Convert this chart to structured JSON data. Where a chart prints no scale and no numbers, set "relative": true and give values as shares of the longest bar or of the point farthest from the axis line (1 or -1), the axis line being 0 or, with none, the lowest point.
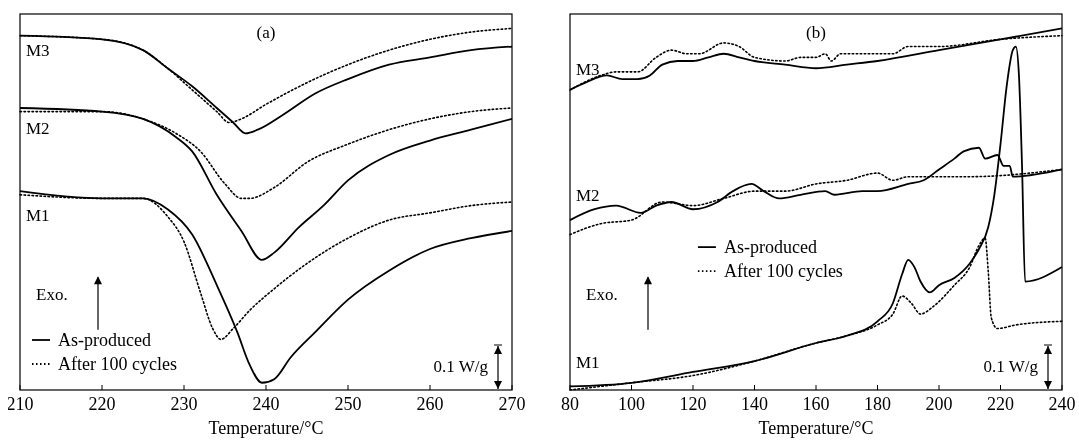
{
  "chart_data": [
    {
      "type": "line",
      "title": "(a)",
      "xlabel": "Temperature/°C",
      "relative": true,
      "xlim": [
        210,
        270
      ],
      "xticks": [
        210,
        220,
        230,
        240,
        250,
        260,
        270
      ],
      "legend": "bottom left",
      "annotations": [
        "M3",
        "M2",
        "M1",
        "Exo.",
        "0.1 W/g"
      ],
      "series": [
        {
          "name": "As-produced",
          "color": "#000000",
          "line_style": "solid",
          "x": [
            210,
            220,
            225,
            228,
            231,
            234,
            236,
            237.5,
            239,
            242,
            246,
            250,
            255,
            260,
            265,
            270
          ],
          "values": [
            0.98,
            0.97,
            0.94,
            0.89,
            0.84,
            0.78,
            0.74,
            0.71,
            0.72,
            0.76,
            0.82,
            0.86,
            0.9,
            0.92,
            0.94,
            0.95
          ]
        },
        {
          "name": "After 100 cycles",
          "color": "#000000",
          "line_style": "dotted",
          "x": [
            210,
            220,
            225,
            228,
            231,
            234,
            235.5,
            237,
            240,
            245,
            250,
            255,
            260,
            265,
            270
          ],
          "values": [
            0.98,
            0.97,
            0.94,
            0.89,
            0.83,
            0.77,
            0.74,
            0.75,
            0.79,
            0.85,
            0.9,
            0.94,
            0.97,
            0.99,
            1
          ]
        },
        {
          "color": "#000000",
          "line_style": "solid",
          "x": [
            210,
            220,
            225,
            229,
            231,
            234,
            237,
            239.5,
            241,
            244,
            247,
            250,
            255,
            260,
            265,
            270
          ],
          "values": [
            0.78,
            0.77,
            0.75,
            0.7,
            0.66,
            0.54,
            0.44,
            0.36,
            0.38,
            0.45,
            0.51,
            0.58,
            0.65,
            0.69,
            0.72,
            0.75
          ]
        },
        {
          "color": "#000000",
          "line_style": "dotted",
          "x": [
            210,
            220,
            225,
            229,
            232,
            235,
            237,
            238,
            241,
            245,
            250,
            255,
            260,
            265,
            270
          ],
          "values": [
            0.77,
            0.77,
            0.75,
            0.71,
            0.66,
            0.57,
            0.53,
            0.53,
            0.56,
            0.63,
            0.68,
            0.72,
            0.75,
            0.77,
            0.78
          ]
        },
        {
          "color": "#000000",
          "line_style": "solid",
          "x": [
            210,
            220,
            225,
            228,
            231,
            234,
            236.5,
            238,
            239.5,
            241,
            243,
            246,
            250,
            255,
            260,
            265,
            270
          ],
          "values": [
            0.55,
            0.53,
            0.53,
            0.5,
            0.43,
            0.29,
            0.16,
            0.07,
            0.02,
            0.03,
            0.09,
            0.16,
            0.25,
            0.33,
            0.39,
            0.42,
            0.44
          ]
        },
        {
          "color": "#000000",
          "line_style": "dotted",
          "x": [
            210,
            220,
            225,
            228,
            230,
            232,
            233.5,
            234.5,
            236,
            238,
            241,
            245,
            250,
            255,
            260,
            265,
            270
          ],
          "values": [
            0.54,
            0.53,
            0.53,
            0.48,
            0.41,
            0.27,
            0.17,
            0.14,
            0.17,
            0.22,
            0.28,
            0.35,
            0.42,
            0.47,
            0.49,
            0.51,
            0.52
          ]
        }
      ]
    },
    {
      "type": "line",
      "title": "(b)",
      "xlabel": "Temperature/°C",
      "relative": true,
      "xlim": [
        80,
        240
      ],
      "xticks": [
        80,
        100,
        120,
        140,
        160,
        180,
        200,
        220,
        240
      ],
      "legend": "center",
      "annotations": [
        "M3",
        "M2",
        "M1",
        "Exo.",
        "0.1 W/g"
      ],
      "series": [
        {
          "name": "As-produced",
          "color": "#000000",
          "line_style": "solid",
          "x": [
            80,
            85,
            92,
            97,
            102,
            106,
            110,
            115,
            120,
            125,
            130,
            135,
            140,
            150,
            160,
            170,
            180,
            200,
            220,
            240
          ],
          "values": [
            0.83,
            0.85,
            0.87,
            0.86,
            0.86,
            0.87,
            0.9,
            0.91,
            0.91,
            0.92,
            0.93,
            0.92,
            0.91,
            0.9,
            0.89,
            0.9,
            0.91,
            0.94,
            0.97,
            1
          ]
        },
        {
          "name": "After 100 cycles",
          "color": "#000000",
          "line_style": "dotted",
          "x": [
            80,
            90,
            95,
            102,
            108,
            113,
            118,
            122,
            130,
            135,
            140,
            150,
            155,
            160,
            163,
            165,
            168,
            175,
            185,
            190,
            200,
            220,
            240
          ],
          "values": [
            0.83,
            0.87,
            0.88,
            0.88,
            0.92,
            0.94,
            0.93,
            0.93,
            0.96,
            0.95,
            0.92,
            0.91,
            0.92,
            0.92,
            0.93,
            0.91,
            0.93,
            0.93,
            0.93,
            0.95,
            0.95,
            0.97,
            0.98
          ]
        },
        {
          "color": "#000000",
          "line_style": "solid",
          "x": [
            80,
            88,
            95,
            103,
            108,
            113,
            120,
            128,
            133,
            139,
            143,
            148,
            155,
            163,
            166,
            175,
            180,
            190,
            195,
            200,
            205,
            208,
            213,
            215,
            219,
            221,
            223,
            224,
            240
          ],
          "values": [
            0.47,
            0.5,
            0.51,
            0.49,
            0.51,
            0.52,
            0.5,
            0.52,
            0.55,
            0.57,
            0.55,
            0.53,
            0.54,
            0.55,
            0.54,
            0.55,
            0.55,
            0.57,
            0.58,
            0.61,
            0.64,
            0.66,
            0.67,
            0.64,
            0.65,
            0.62,
            0.62,
            0.59,
            0.61
          ]
        },
        {
          "color": "#000000",
          "line_style": "dotted",
          "x": [
            80,
            90,
            100,
            110,
            120,
            130,
            140,
            150,
            160,
            170,
            180,
            185,
            190,
            200,
            205,
            210,
            240
          ],
          "values": [
            0.43,
            0.46,
            0.47,
            0.52,
            0.51,
            0.53,
            0.55,
            0.55,
            0.57,
            0.58,
            0.6,
            0.58,
            0.59,
            0.59,
            0.59,
            0.59,
            0.61
          ]
        },
        {
          "color": "#000000",
          "line_style": "solid",
          "x": [
            80,
            100,
            120,
            140,
            160,
            170,
            180,
            185,
            188,
            190,
            192,
            194,
            197,
            200,
            205,
            210,
            213,
            216,
            218,
            220,
            222,
            224,
            225,
            226,
            227,
            228,
            240
          ],
          "values": [
            0.01,
            0.02,
            0.05,
            0.08,
            0.13,
            0.15,
            0.19,
            0.24,
            0.32,
            0.36,
            0.34,
            0.3,
            0.27,
            0.29,
            0.31,
            0.35,
            0.39,
            0.45,
            0.54,
            0.68,
            0.84,
            0.94,
            0.95,
            0.87,
            0.62,
            0.3,
            0.34
          ]
        },
        {
          "color": "#000000",
          "line_style": "dotted",
          "x": [
            80,
            100,
            120,
            140,
            160,
            170,
            180,
            185,
            188,
            191,
            194,
            198,
            205,
            210,
            213,
            215,
            216,
            217,
            219,
            225,
            240
          ],
          "values": [
            0,
            0.02,
            0.04,
            0.08,
            0.13,
            0.15,
            0.18,
            0.21,
            0.26,
            0.24,
            0.21,
            0.23,
            0.29,
            0.34,
            0.4,
            0.42,
            0.33,
            0.2,
            0.17,
            0.18,
            0.19
          ]
        }
      ]
    }
  ]
}
